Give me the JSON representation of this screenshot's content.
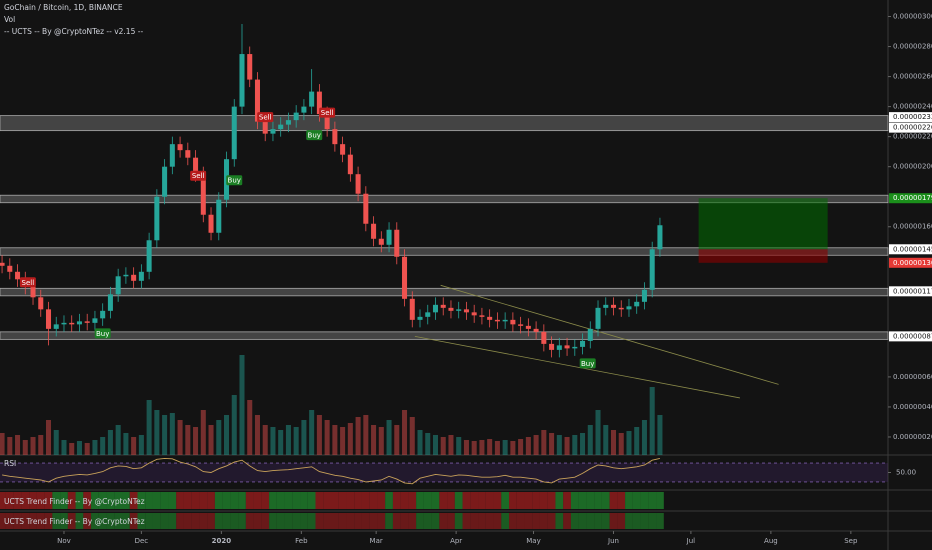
{
  "chart_data": {
    "type": "candlestick",
    "title": "GoChain / Bitcoin, 1D, BINANCE",
    "volume_label": "Vol",
    "indicator_label": "-- UCTS -- By @CryptoNTez -- v2.15 --",
    "rsi_label": "RSI",
    "trend_labels": [
      "UCTS Trend Finder -- By @CryptoNTez",
      "UCTS Trend Finder -- By @CryptoNTez"
    ],
    "up_color": "#26a69a",
    "down_color": "#ef5350",
    "x": [
      -24,
      -21,
      -18,
      -15,
      -12,
      -9,
      -6,
      -3,
      0,
      3,
      6,
      9,
      12,
      15,
      18,
      21,
      24,
      27,
      30,
      33,
      36,
      39,
      42,
      45,
      48,
      51,
      54,
      57,
      60,
      63,
      66,
      69,
      72,
      75,
      78,
      81,
      84,
      87,
      90,
      93,
      96,
      99,
      102,
      105,
      108,
      111,
      114,
      117,
      120,
      123,
      126,
      129,
      132,
      135,
      138,
      141,
      144,
      147,
      150,
      153,
      156,
      159,
      162,
      165,
      168,
      171,
      174,
      177,
      180,
      183,
      186,
      189,
      192,
      195,
      198,
      201,
      204,
      207,
      210,
      213,
      216,
      219,
      222,
      225,
      228,
      231
    ],
    "open": [
      1.36e-06,
      1.34e-06,
      1.3e-06,
      1.25e-06,
      1.2e-06,
      1.13e-06,
      1.05e-06,
      9.2e-07,
      9.5e-07,
      9.6e-07,
      9.5e-07,
      9.7e-07,
      9.6e-07,
      9.9e-07,
      1.04e-06,
      1.15e-06,
      1.27e-06,
      1.28e-06,
      1.24e-06,
      1.3e-06,
      1.51e-06,
      1.8e-06,
      2e-06,
      2.15e-06,
      2.11e-06,
      2.06e-06,
      1.95e-06,
      1.68e-06,
      1.56e-06,
      1.78e-06,
      2.05e-06,
      2.4e-06,
      2.75e-06,
      2.58e-06,
      2.3e-06,
      2.22e-06,
      2.25e-06,
      2.28e-06,
      2.31e-06,
      2.36e-06,
      2.4e-06,
      2.5e-06,
      2.35e-06,
      2.25e-06,
      2.15e-06,
      2.08e-06,
      1.95e-06,
      1.82e-06,
      1.62e-06,
      1.52e-06,
      1.48e-06,
      1.58e-06,
      1.4e-06,
      1.12e-06,
      9.8e-07,
      1e-06,
      1.03e-06,
      1.08e-06,
      1.06e-06,
      1.04e-06,
      1.05e-06,
      1.03e-06,
      1.01e-06,
      1e-06,
      9.8e-07,
      9.7e-07,
      9.8e-07,
      9.5e-07,
      9.4e-07,
      9.2e-07,
      9e-07,
      8.2e-07,
      7.8e-07,
      8.1e-07,
      7.9e-07,
      8e-07,
      8.4e-07,
      9.2e-07,
      1.06e-06,
      1.08e-06,
      1.06e-06,
      1.05e-06,
      1.07e-06,
      1.1e-06,
      1.18e-06,
      1.45e-06
    ],
    "high": [
      1.41e-06,
      1.39e-06,
      1.35e-06,
      1.3e-06,
      1.25e-06,
      1.18e-06,
      1.1e-06,
      1e-06,
      1.01e-06,
      1.01e-06,
      1.02e-06,
      1.02e-06,
      1.04e-06,
      1.09e-06,
      1.2e-06,
      1.32e-06,
      1.33e-06,
      1.33e-06,
      1.35e-06,
      1.56e-06,
      1.85e-06,
      2.05e-06,
      2.2e-06,
      2.2e-06,
      2.16e-06,
      2.11e-06,
      2e-06,
      1.73e-06,
      1.83e-06,
      2.1e-06,
      2.45e-06,
      2.95e-06,
      2.8e-06,
      2.63e-06,
      2.35e-06,
      2.3e-06,
      2.33e-06,
      2.36e-06,
      2.41e-06,
      2.45e-06,
      2.65e-06,
      2.55e-06,
      2.4e-06,
      2.3e-06,
      2.2e-06,
      2.13e-06,
      2e-06,
      1.87e-06,
      1.67e-06,
      1.57e-06,
      1.63e-06,
      1.63e-06,
      1.45e-06,
      1.17e-06,
      1.05e-06,
      1.08e-06,
      1.13e-06,
      1.13e-06,
      1.11e-06,
      1.1e-06,
      1.1e-06,
      1.08e-06,
      1.06e-06,
      1.05e-06,
      1.03e-06,
      1.03e-06,
      1.03e-06,
      1e-06,
      9.9e-07,
      9.7e-07,
      9.5e-07,
      8.7e-07,
      8.6e-07,
      8.6e-07,
      8.5e-07,
      8.9e-07,
      9.7e-07,
      1.11e-06,
      1.13e-06,
      1.13e-06,
      1.11e-06,
      1.12e-06,
      1.15e-06,
      1.23e-06,
      1.5e-06,
      1.66e-06
    ],
    "low": [
      1.29e-06,
      1.25e-06,
      1.2e-06,
      1.15e-06,
      1.08e-06,
      1e-06,
      8.1e-07,
      8.7e-07,
      9e-07,
      9e-07,
      9e-07,
      9.1e-07,
      9.1e-07,
      9.4e-07,
      9.9e-07,
      1.1e-06,
      1.22e-06,
      1.19e-06,
      1.19e-06,
      1.25e-06,
      1.46e-06,
      1.75e-06,
      1.95e-06,
      2.06e-06,
      2.01e-06,
      1.9e-06,
      1.63e-06,
      1.51e-06,
      1.51e-06,
      1.73e-06,
      2e-06,
      2.35e-06,
      2.53e-06,
      2.25e-06,
      2.17e-06,
      2.17e-06,
      2.2e-06,
      2.23e-06,
      2.26e-06,
      2.31e-06,
      2.35e-06,
      2.3e-06,
      2.2e-06,
      2.1e-06,
      2.03e-06,
      1.9e-06,
      1.77e-06,
      1.57e-06,
      1.47e-06,
      1.43e-06,
      1.43e-06,
      1.35e-06,
      1.07e-06,
      9.3e-07,
      9.3e-07,
      9.5e-07,
      9.8e-07,
      1.01e-06,
      9.9e-07,
      9.9e-07,
      9.8e-07,
      9.6e-07,
      9.5e-07,
      9.3e-07,
      9.2e-07,
      9.2e-07,
      9e-07,
      8.9e-07,
      8.7e-07,
      8.5e-07,
      7.7e-07,
      7.3e-07,
      7.3e-07,
      7.4e-07,
      7.4e-07,
      7.5e-07,
      7.9e-07,
      8.7e-07,
      1.01e-06,
      1.01e-06,
      1e-06,
      1e-06,
      1.02e-06,
      1.05e-06,
      1.13e-06,
      1.4e-06
    ],
    "close": [
      1.34e-06,
      1.3e-06,
      1.25e-06,
      1.2e-06,
      1.13e-06,
      1.05e-06,
      9.2e-07,
      9.5e-07,
      9.6e-07,
      9.5e-07,
      9.7e-07,
      9.6e-07,
      9.9e-07,
      1.04e-06,
      1.15e-06,
      1.27e-06,
      1.28e-06,
      1.24e-06,
      1.3e-06,
      1.51e-06,
      1.8e-06,
      2e-06,
      2.15e-06,
      2.11e-06,
      2.06e-06,
      1.95e-06,
      1.68e-06,
      1.56e-06,
      1.78e-06,
      2.05e-06,
      2.4e-06,
      2.75e-06,
      2.58e-06,
      2.3e-06,
      2.22e-06,
      2.25e-06,
      2.28e-06,
      2.31e-06,
      2.36e-06,
      2.4e-06,
      2.5e-06,
      2.35e-06,
      2.25e-06,
      2.15e-06,
      2.08e-06,
      1.95e-06,
      1.82e-06,
      1.62e-06,
      1.52e-06,
      1.48e-06,
      1.58e-06,
      1.4e-06,
      1.12e-06,
      9.8e-07,
      1e-06,
      1.03e-06,
      1.08e-06,
      1.06e-06,
      1.04e-06,
      1.05e-06,
      1.03e-06,
      1.01e-06,
      1e-06,
      9.8e-07,
      9.7e-07,
      9.8e-07,
      9.5e-07,
      9.4e-07,
      9.2e-07,
      9e-07,
      8.2e-07,
      7.8e-07,
      8.1e-07,
      7.9e-07,
      8e-07,
      8.4e-07,
      9.2e-07,
      1.06e-06,
      1.08e-06,
      1.06e-06,
      1.05e-06,
      1.07e-06,
      1.1e-06,
      1.18e-06,
      1.45e-06,
      1.61e-06
    ],
    "volume": [
      22,
      18,
      20,
      15,
      18,
      20,
      35,
      25,
      15,
      12,
      14,
      12,
      15,
      18,
      25,
      30,
      22,
      18,
      20,
      55,
      45,
      40,
      42,
      35,
      30,
      28,
      45,
      30,
      35,
      40,
      60,
      100,
      55,
      40,
      30,
      28,
      25,
      30,
      28,
      35,
      45,
      40,
      35,
      30,
      28,
      32,
      38,
      40,
      30,
      28,
      35,
      30,
      45,
      38,
      25,
      22,
      20,
      18,
      20,
      18,
      15,
      14,
      15,
      16,
      14,
      15,
      14,
      16,
      18,
      20,
      25,
      22,
      20,
      18,
      20,
      22,
      30,
      45,
      30,
      25,
      22,
      24,
      28,
      35,
      68,
      40
    ],
    "volume_lim": [
      0,
      120
    ],
    "rsi": [
      45,
      42,
      40,
      38,
      36,
      34,
      30,
      38,
      42,
      44,
      46,
      45,
      48,
      52,
      60,
      64,
      63,
      58,
      60,
      70,
      78,
      80,
      79,
      72,
      68,
      62,
      52,
      50,
      58,
      64,
      72,
      76,
      64,
      54,
      52,
      54,
      55,
      56,
      58,
      60,
      62,
      52,
      48,
      44,
      42,
      38,
      35,
      30,
      32,
      34,
      42,
      36,
      28,
      26,
      38,
      42,
      46,
      44,
      42,
      45,
      44,
      42,
      40,
      40,
      41,
      44,
      40,
      40,
      38,
      36,
      30,
      28,
      36,
      38,
      40,
      48,
      58,
      66,
      64,
      60,
      58,
      60,
      62,
      66,
      76,
      80
    ],
    "rsi_lim": [
      15,
      85
    ],
    "rsi_bands": [
      70,
      30
    ],
    "rsi_ticks": [
      {
        "value": 50,
        "label": "50.00"
      }
    ],
    "xlim": [
      -24.8,
      319.4
    ],
    "xticks": [
      {
        "value": 0,
        "label": "Nov"
      },
      {
        "value": 30,
        "label": "Dec"
      },
      {
        "value": 61,
        "label": "2020"
      },
      {
        "value": 92,
        "label": "Feb"
      },
      {
        "value": 121,
        "label": "Mar"
      },
      {
        "value": 152,
        "label": "Apr"
      },
      {
        "value": 182,
        "label": "May"
      },
      {
        "value": 213,
        "label": "Jun"
      },
      {
        "value": 243,
        "label": "Jul"
      },
      {
        "value": 274,
        "label": "Aug"
      },
      {
        "value": 305,
        "label": "Sep"
      }
    ],
    "ylim": [
      8e-08,
      3.11e-06
    ],
    "yticks": [
      {
        "value": 3e-06,
        "label": "0.00000300"
      },
      {
        "value": 2.8e-06,
        "label": "0.00000280"
      },
      {
        "value": 2.6e-06,
        "label": "0.00000260"
      },
      {
        "value": 2.4e-06,
        "label": "0.00000240"
      },
      {
        "value": 2.2e-06,
        "label": "0.00000220"
      },
      {
        "value": 2e-06,
        "label": "0.00000200"
      },
      {
        "value": 1.6e-06,
        "label": "0.00000160"
      },
      {
        "value": 6e-07,
        "label": "0.00000060"
      },
      {
        "value": 4e-07,
        "label": "0.00000040"
      },
      {
        "value": 2e-07,
        "label": "0.00000020"
      }
    ],
    "zones": [
      [
        2.24e-06,
        2.34e-06
      ],
      [
        1.76e-06,
        1.81e-06
      ],
      [
        1.41e-06,
        1.46e-06
      ],
      [
        1.14e-06,
        1.19e-06
      ],
      [
        8.5e-07,
        9e-07
      ]
    ],
    "price_tags": [
      {
        "value": 2.33e-06,
        "label": "0.00000233",
        "color": "#ffffff"
      },
      {
        "value": 2.26e-06,
        "label": "0.00000226",
        "color": "#ffffff"
      },
      {
        "value": 1.79e-06,
        "label": "0.00000179",
        "color": "#1b8f1b"
      },
      {
        "value": 1.45e-06,
        "label": "0.00000145",
        "color": "#ffffff"
      },
      {
        "value": 1.36e-06,
        "label": "0.00000136",
        "color": "#e53935"
      },
      {
        "value": 1.17e-06,
        "label": "0.00000117",
        "color": "#ffffff"
      },
      {
        "value": 8.7e-07,
        "label": "0.00000087",
        "color": "#ffffff"
      }
    ],
    "signals": [
      {
        "label": "Sell",
        "x": -14,
        "price": 1.23e-06
      },
      {
        "label": "Buy",
        "x": 15,
        "price": 8.9e-07
      },
      {
        "label": "Sell",
        "x": 52,
        "price": 1.94e-06
      },
      {
        "label": "Buy",
        "x": 66,
        "price": 1.91e-06
      },
      {
        "label": "Sell",
        "x": 78,
        "price": 2.33e-06
      },
      {
        "label": "Buy",
        "x": 97,
        "price": 2.21e-06
      },
      {
        "label": "Sell",
        "x": 102,
        "price": 2.36e-06
      },
      {
        "label": "Buy",
        "x": 203,
        "price": 6.9e-07
      }
    ],
    "trendlines": [
      {
        "x1": 146,
        "y1": 1.21e-06,
        "x2": 277,
        "y2": 5.5e-07
      },
      {
        "x1": 136,
        "y1": 8.7e-07,
        "x2": 262,
        "y2": 4.6e-07
      }
    ],
    "position": {
      "start": 246,
      "end": 296,
      "entry": 1.45e-06,
      "target": 1.79e-06,
      "stop": 1.36e-06
    }
  }
}
